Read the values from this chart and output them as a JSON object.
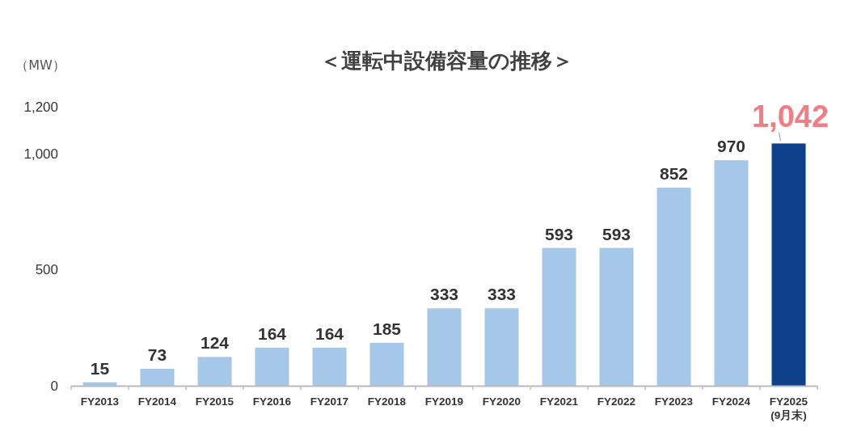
{
  "chart_data": {
    "type": "bar",
    "title": "＜運転中設備容量の推移＞",
    "ylabel": "（MW）",
    "categories": [
      "FY2013",
      "FY2014",
      "FY2015",
      "FY2016",
      "FY2017",
      "FY2018",
      "FY2019",
      "FY2020",
      "FY2021",
      "FY2022",
      "FY2023",
      "FY2024",
      "FY2025\n(9月末)"
    ],
    "values": [
      15,
      73,
      124,
      164,
      164,
      185,
      333,
      333,
      593,
      593,
      852,
      970,
      1042
    ],
    "colors": [
      "#a6c8e8",
      "#a6c8e8",
      "#a6c8e8",
      "#a6c8e8",
      "#a6c8e8",
      "#a6c8e8",
      "#a6c8e8",
      "#a6c8e8",
      "#a6c8e8",
      "#a6c8e8",
      "#a6c8e8",
      "#a6c8e8",
      "#0d428a"
    ],
    "value_labels": [
      "15",
      "73",
      "124",
      "164",
      "164",
      "185",
      "333",
      "333",
      "593",
      "593",
      "852",
      "970",
      null
    ],
    "annotations": [
      {
        "text": "1,042",
        "x": "FY2025\n(9月末)",
        "y": 1042
      }
    ],
    "ylim": [
      0,
      1200
    ],
    "yticks": [
      0,
      {
        "value": 500,
        "label": "500"
      },
      {
        "value": 1000,
        "label": "1,000"
      },
      {
        "value": 1200,
        "label": "1,200"
      }
    ],
    "grid": false
  }
}
